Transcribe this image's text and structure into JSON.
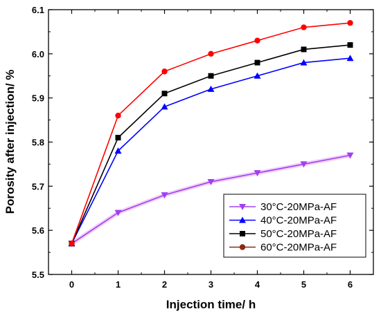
{
  "chart_data": {
    "type": "line",
    "xlabel": "Injection time/ h",
    "ylabel": "Porosity after injection/ %",
    "x": [
      0,
      1,
      2,
      3,
      4,
      5,
      6
    ],
    "xlim": [
      -0.5,
      6.5
    ],
    "ylim": [
      5.5,
      6.1
    ],
    "x_ticks": [
      0,
      1,
      2,
      3,
      4,
      5,
      6
    ],
    "y_ticks": [
      5.5,
      5.6,
      5.7,
      5.8,
      5.9,
      6.0,
      6.1
    ],
    "y_tick_labels": [
      "5.5",
      "5.6",
      "5.7",
      "5.8",
      "5.9",
      "6.0",
      "6.1"
    ],
    "grid": false,
    "legend_position": "bottom-right",
    "series": [
      {
        "name": "30°C-20MPa-AF",
        "color": "#a040f0",
        "marker": "triangle-down",
        "values": [
          5.57,
          5.64,
          5.68,
          5.71,
          5.73,
          5.75,
          5.77
        ]
      },
      {
        "name": "40°C-20MPa-AF",
        "color": "#0000ff",
        "marker": "triangle-up",
        "values": [
          5.57,
          5.78,
          5.88,
          5.92,
          5.95,
          5.98,
          5.99
        ]
      },
      {
        "name": "50°C-20MPa-AF",
        "color": "#000000",
        "marker": "square",
        "values": [
          5.57,
          5.81,
          5.91,
          5.95,
          5.98,
          6.01,
          6.02
        ]
      },
      {
        "name": "60°C-20MPa-AF",
        "color": "#ff0000",
        "legend_color": "#8b2a12",
        "marker": "circle",
        "values": [
          5.57,
          5.86,
          5.96,
          6.0,
          6.03,
          6.06,
          6.07
        ]
      }
    ]
  }
}
